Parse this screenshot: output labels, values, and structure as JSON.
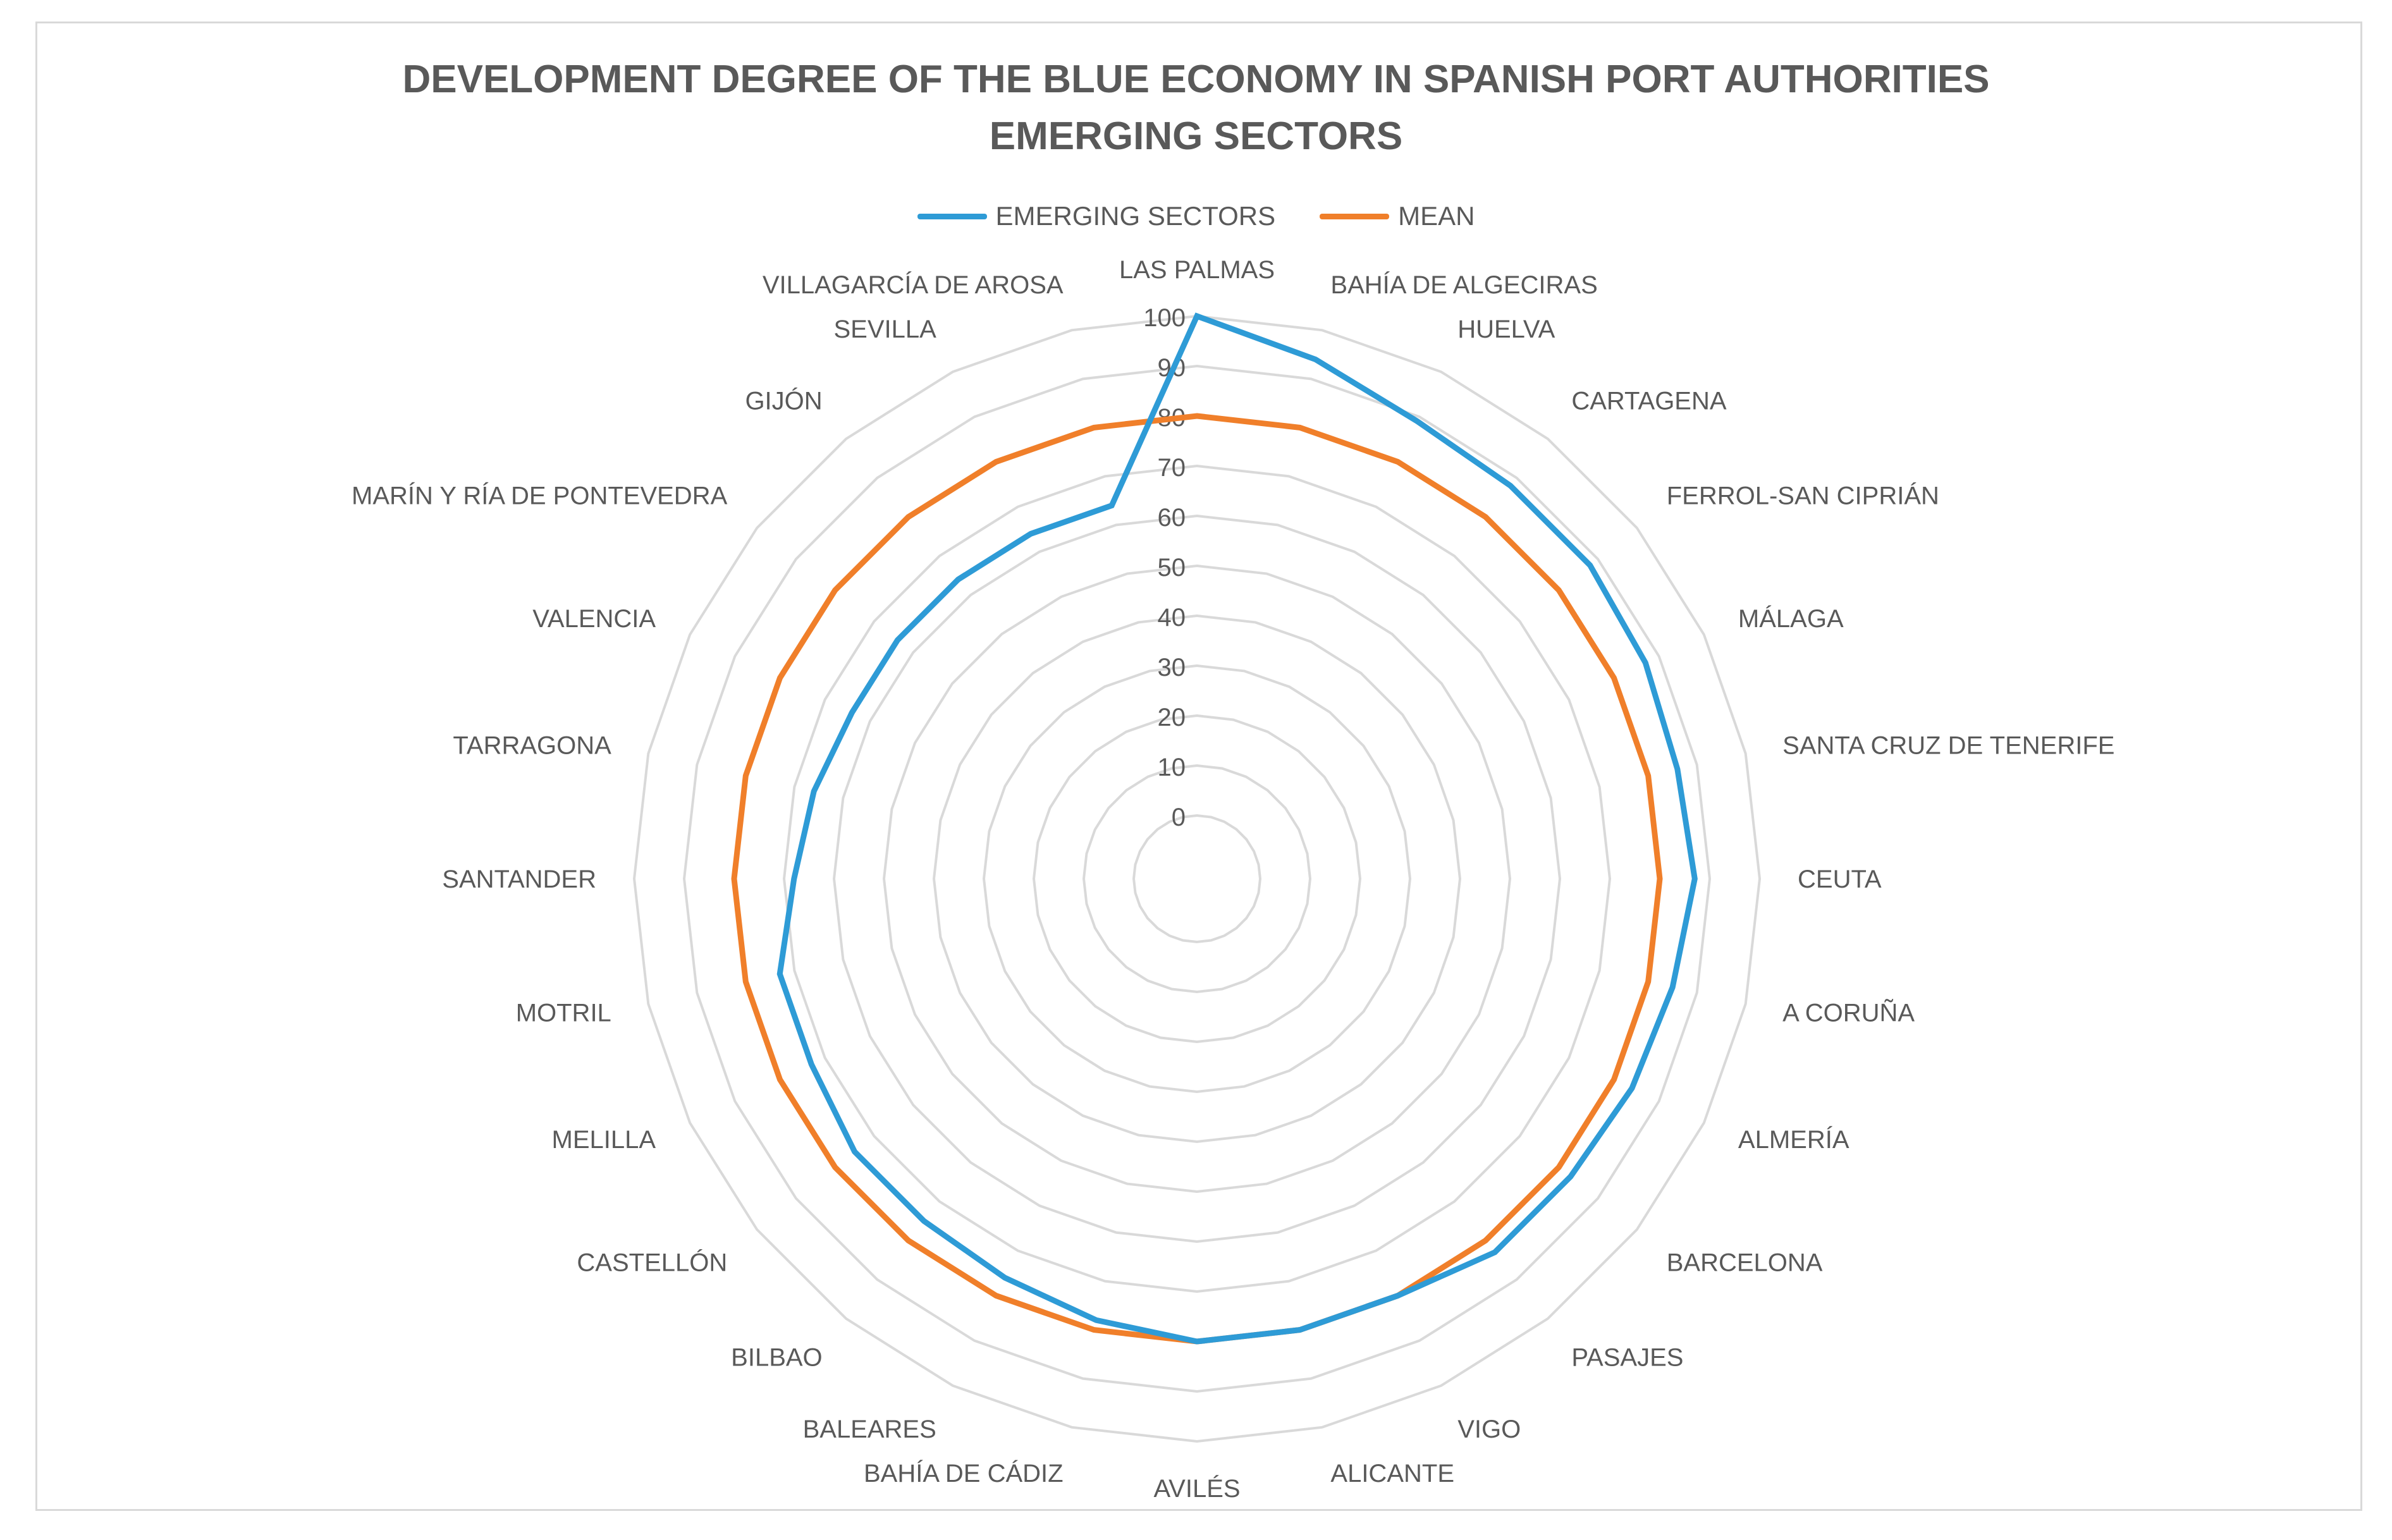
{
  "chart_data": {
    "type": "radar",
    "title": "DEVELOPMENT DEGREE OF THE BLUE ECONOMY IN SPANISH PORT AUTHORITIES",
    "subtitle": "EMERGING SECTORS",
    "legend_position": "top",
    "rlim": [
      0,
      100
    ],
    "ticks": [
      "0",
      "10",
      "20",
      "30",
      "40",
      "50",
      "60",
      "70",
      "80",
      "90",
      "100"
    ],
    "tick_values": [
      0,
      10,
      20,
      30,
      40,
      50,
      60,
      70,
      80,
      90,
      100
    ],
    "categories": [
      "LAS PALMAS",
      "BAHÍA DE ALGECIRAS",
      "HUELVA",
      "CARTAGENA",
      "FERROL-SAN CIPRIÁN",
      "MÁLAGA",
      "SANTA CRUZ DE TENERIFE",
      "CEUTA",
      "A CORUÑA",
      "ALMERÍA",
      "BARCELONA",
      "PASAJES",
      "VIGO",
      "ALICANTE",
      "AVILÉS",
      "BAHÍA DE CÁDIZ",
      "BALEARES",
      "BILBAO",
      "CASTELLÓN",
      "MELILLA",
      "MOTRIL",
      "SANTANDER",
      "TARRAGONA",
      "VALENCIA",
      "MARÍN Y RÍA DE PONTEVEDRA",
      "GIJÓN",
      "SEVILLA",
      "VILLAGARCÍA DE AROSA"
    ],
    "series": [
      {
        "name": "EMERGING SECTORS",
        "color": "#2e9bd6",
        "values": [
          100,
          94,
          89,
          88,
          88,
          87,
          86,
          87,
          85,
          84,
          83,
          83,
          80,
          80,
          80,
          78,
          76,
          75,
          75,
          73,
          73,
          68,
          66,
          64,
          64,
          64,
          64,
          64
        ]
      },
      {
        "name": "MEAN",
        "color": "#f07f2a",
        "values": [
          80,
          80,
          80,
          80,
          80,
          80,
          80,
          80,
          80,
          80,
          80,
          80,
          80,
          80,
          80,
          80,
          80,
          80,
          80,
          80,
          80,
          80,
          80,
          80,
          80,
          80,
          80,
          80
        ]
      }
    ]
  },
  "colors": {
    "grid": "#d9d9d9",
    "text": "#595959",
    "frame": "#d9d9d9"
  }
}
